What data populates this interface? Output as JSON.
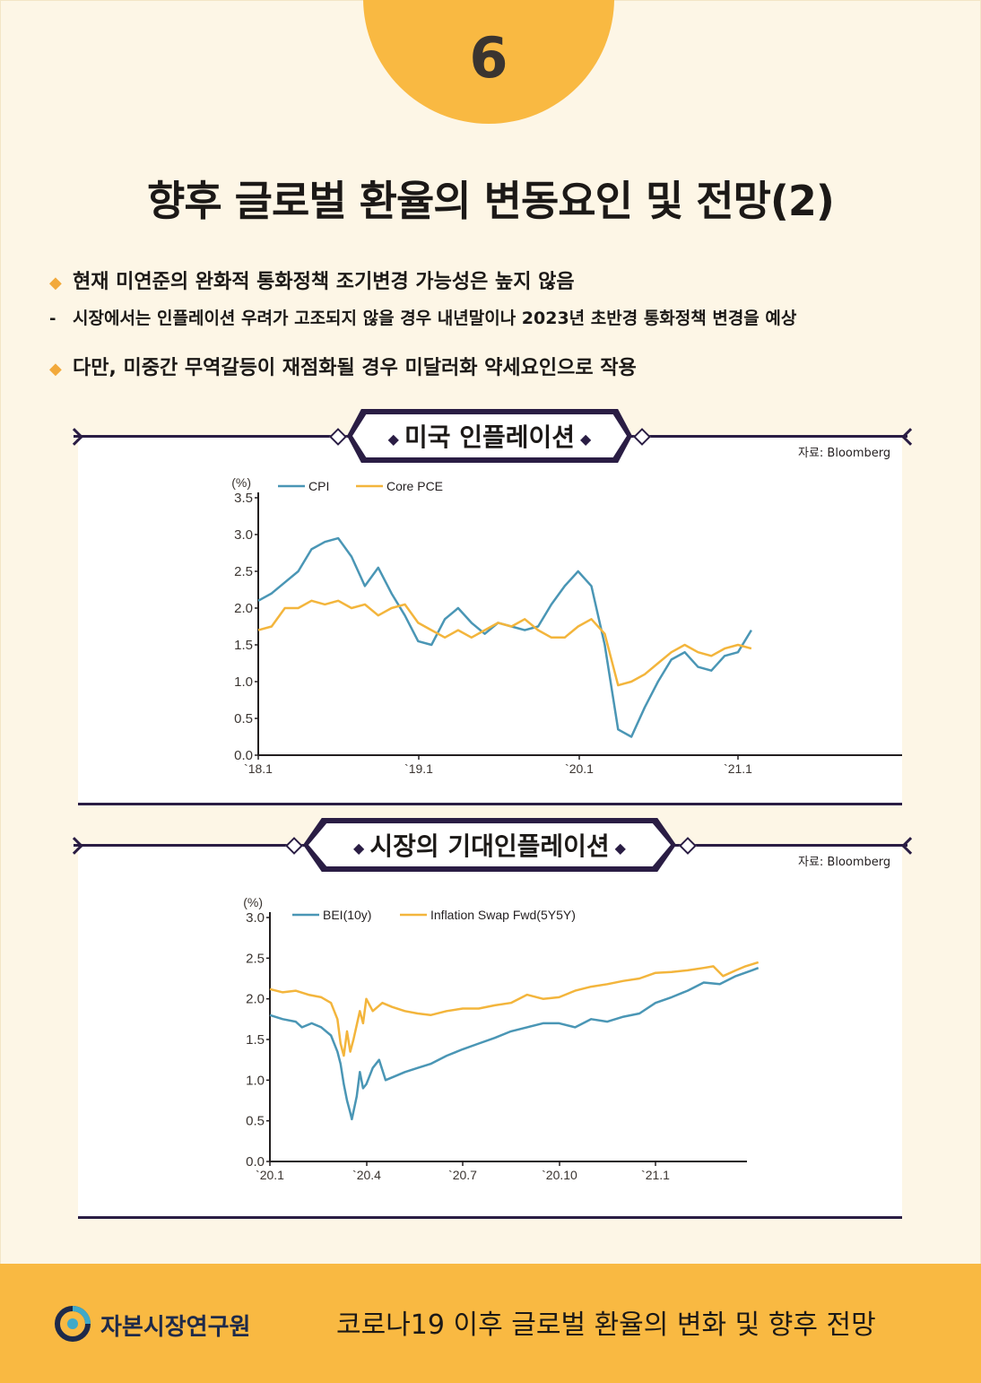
{
  "badge": {
    "number": "6"
  },
  "title": "향후 글로벌 환율의 변동요인 및 전망(2)",
  "bullets": [
    "현재 미연준의 완화적 통화정책 조기변경 가능성은 높지 않음",
    "시장에서는 인플레이션 우려가 고조되지 않을 경우 내년말이나 2023년 초반경 통화정책 변경을 예상",
    "다만, 미중간 무역갈등이 재점화될 경우 미달러화 약세요인으로 작용"
  ],
  "bullet_marks": {
    "diamond": "◆",
    "dash": "-"
  },
  "colors": {
    "blue": "#4a96b5",
    "orange": "#f3b53c",
    "accent": "#f9b942",
    "navy": "#2a1d44"
  },
  "chart_data": [
    {
      "type": "line",
      "title": "미국 인플레이션",
      "source": "자료: Bloomberg",
      "ylabel": "(%)",
      "ylim": [
        0,
        3.5
      ],
      "yticks": [
        "0.0",
        "0.5",
        "1.0",
        "1.5",
        "2.0",
        "2.5",
        "3.0",
        "3.5"
      ],
      "xticks": [
        "`18.1",
        "`19.1",
        "`20.1",
        "`21.1"
      ],
      "x": [
        "2018-01",
        "2018-02",
        "2018-03",
        "2018-04",
        "2018-05",
        "2018-06",
        "2018-07",
        "2018-08",
        "2018-09",
        "2018-10",
        "2018-11",
        "2018-12",
        "2019-01",
        "2019-02",
        "2019-03",
        "2019-04",
        "2019-05",
        "2019-06",
        "2019-07",
        "2019-08",
        "2019-09",
        "2019-10",
        "2019-11",
        "2019-12",
        "2020-01",
        "2020-02",
        "2020-03",
        "2020-04",
        "2020-05",
        "2020-06",
        "2020-07",
        "2020-08",
        "2020-09",
        "2020-10",
        "2020-11",
        "2020-12",
        "2021-01",
        "2021-02"
      ],
      "series": [
        {
          "name": "CPI",
          "values": [
            2.1,
            2.2,
            2.35,
            2.5,
            2.8,
            2.9,
            2.95,
            2.7,
            2.3,
            2.55,
            2.2,
            1.9,
            1.55,
            1.5,
            1.85,
            2.0,
            1.8,
            1.65,
            1.8,
            1.75,
            1.7,
            1.75,
            2.05,
            2.3,
            2.5,
            2.3,
            1.5,
            0.35,
            0.25,
            0.65,
            1.0,
            1.3,
            1.4,
            1.2,
            1.15,
            1.35,
            1.4,
            1.7
          ]
        },
        {
          "name": "Core PCE",
          "values": [
            1.7,
            1.75,
            2.0,
            2.0,
            2.1,
            2.05,
            2.1,
            2.0,
            2.05,
            1.9,
            2.0,
            2.05,
            1.8,
            1.7,
            1.6,
            1.7,
            1.6,
            1.7,
            1.8,
            1.75,
            1.85,
            1.7,
            1.6,
            1.6,
            1.75,
            1.85,
            1.65,
            0.95,
            1.0,
            1.1,
            1.25,
            1.4,
            1.5,
            1.4,
            1.35,
            1.45,
            1.5,
            1.45
          ]
        }
      ]
    },
    {
      "type": "line",
      "title": "시장의 기대인플레이션",
      "source": "자료: Bloomberg",
      "ylabel": "(%)",
      "ylim": [
        0,
        3.0
      ],
      "yticks": [
        "0.0",
        "0.5",
        "1.0",
        "1.5",
        "2.0",
        "2.5",
        "3.0"
      ],
      "xticks": [
        "`20.1",
        "`20.4",
        "`20.7",
        "`20.10",
        "`21.1"
      ],
      "x_range_months": [
        0,
        15.2
      ],
      "series": [
        {
          "name": "BEI(10y)",
          "points": [
            [
              0,
              1.8
            ],
            [
              0.4,
              1.75
            ],
            [
              0.8,
              1.72
            ],
            [
              1.0,
              1.65
            ],
            [
              1.3,
              1.7
            ],
            [
              1.6,
              1.65
            ],
            [
              1.9,
              1.55
            ],
            [
              2.1,
              1.35
            ],
            [
              2.2,
              1.2
            ],
            [
              2.3,
              0.95
            ],
            [
              2.4,
              0.75
            ],
            [
              2.5,
              0.6
            ],
            [
              2.55,
              0.52
            ],
            [
              2.7,
              0.8
            ],
            [
              2.8,
              1.1
            ],
            [
              2.9,
              0.9
            ],
            [
              3.0,
              0.95
            ],
            [
              3.2,
              1.15
            ],
            [
              3.4,
              1.25
            ],
            [
              3.6,
              1.0
            ],
            [
              3.9,
              1.05
            ],
            [
              4.2,
              1.1
            ],
            [
              4.6,
              1.15
            ],
            [
              5.0,
              1.2
            ],
            [
              5.5,
              1.3
            ],
            [
              6.0,
              1.38
            ],
            [
              6.5,
              1.45
            ],
            [
              7.0,
              1.52
            ],
            [
              7.5,
              1.6
            ],
            [
              8.0,
              1.65
            ],
            [
              8.5,
              1.7
            ],
            [
              9.0,
              1.7
            ],
            [
              9.5,
              1.65
            ],
            [
              10.0,
              1.75
            ],
            [
              10.5,
              1.72
            ],
            [
              11.0,
              1.78
            ],
            [
              11.5,
              1.82
            ],
            [
              12.0,
              1.95
            ],
            [
              12.5,
              2.02
            ],
            [
              13.0,
              2.1
            ],
            [
              13.5,
              2.2
            ],
            [
              14.0,
              2.18
            ],
            [
              14.5,
              2.28
            ],
            [
              15.0,
              2.35
            ],
            [
              15.2,
              2.38
            ]
          ]
        },
        {
          "name": "Inflation Swap Fwd(5Y5Y)",
          "points": [
            [
              0,
              2.12
            ],
            [
              0.4,
              2.08
            ],
            [
              0.8,
              2.1
            ],
            [
              1.2,
              2.05
            ],
            [
              1.6,
              2.02
            ],
            [
              1.9,
              1.95
            ],
            [
              2.1,
              1.75
            ],
            [
              2.2,
              1.45
            ],
            [
              2.3,
              1.3
            ],
            [
              2.4,
              1.6
            ],
            [
              2.5,
              1.35
            ],
            [
              2.6,
              1.5
            ],
            [
              2.8,
              1.85
            ],
            [
              2.9,
              1.7
            ],
            [
              3.0,
              2.0
            ],
            [
              3.2,
              1.85
            ],
            [
              3.5,
              1.95
            ],
            [
              3.8,
              1.9
            ],
            [
              4.2,
              1.85
            ],
            [
              4.6,
              1.82
            ],
            [
              5.0,
              1.8
            ],
            [
              5.5,
              1.85
            ],
            [
              6.0,
              1.88
            ],
            [
              6.5,
              1.88
            ],
            [
              7.0,
              1.92
            ],
            [
              7.5,
              1.95
            ],
            [
              8.0,
              2.05
            ],
            [
              8.5,
              2.0
            ],
            [
              9.0,
              2.02
            ],
            [
              9.5,
              2.1
            ],
            [
              10.0,
              2.15
            ],
            [
              10.5,
              2.18
            ],
            [
              11.0,
              2.22
            ],
            [
              11.5,
              2.25
            ],
            [
              12.0,
              2.32
            ],
            [
              12.5,
              2.33
            ],
            [
              13.0,
              2.35
            ],
            [
              13.5,
              2.38
            ],
            [
              13.8,
              2.4
            ],
            [
              14.1,
              2.28
            ],
            [
              14.5,
              2.35
            ],
            [
              14.8,
              2.4
            ],
            [
              15.2,
              2.45
            ]
          ]
        }
      ]
    }
  ],
  "footer": {
    "org": "자본시장연구원",
    "subtitle": "코로나19 이후 글로벌 환율의 변화 및 향후 전망"
  }
}
